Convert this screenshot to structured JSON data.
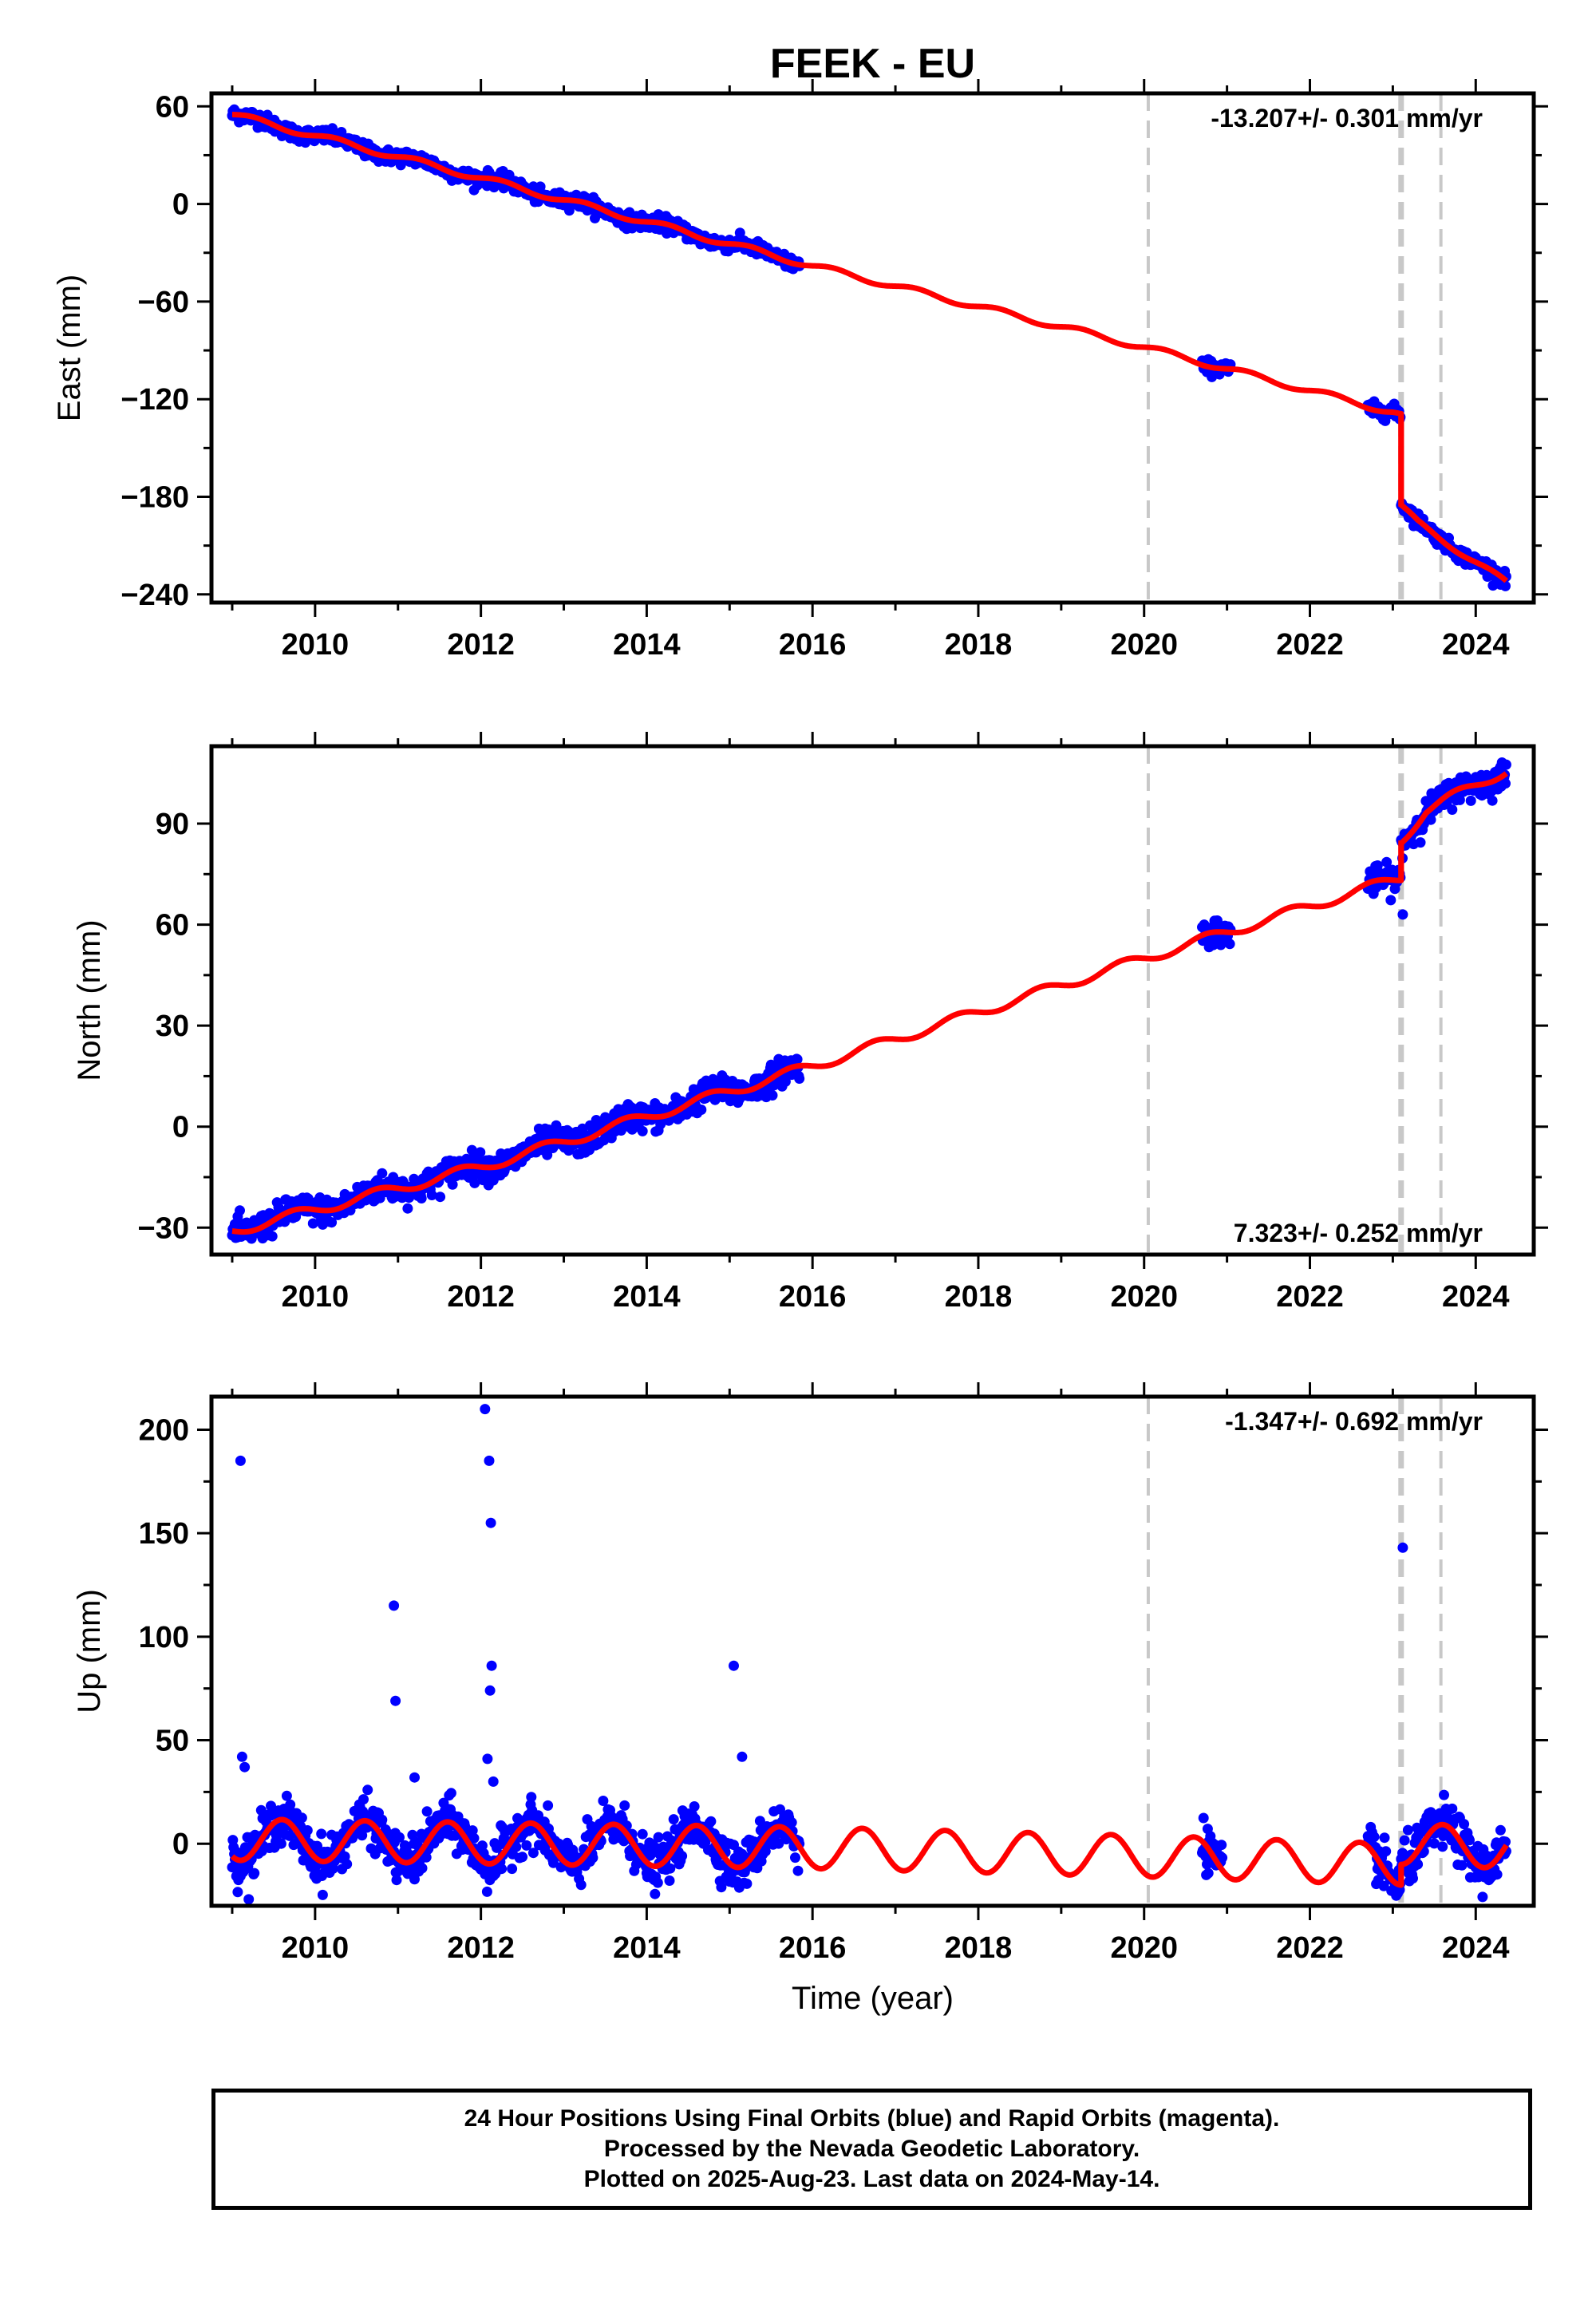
{
  "chart_data": {
    "title": "FEEK - EU",
    "type": "scatter",
    "x_range": [
      2008.75,
      2024.7
    ],
    "x_ticks": [
      2010,
      2012,
      2014,
      2016,
      2018,
      2020,
      2022,
      2024
    ],
    "xlabel": "Time (year)",
    "event_lines": [
      {
        "x": 2020.05,
        "style": "dashed-light"
      },
      {
        "x": 2023.1,
        "style": "dashed-thick"
      },
      {
        "x": 2023.58,
        "style": "dashed-light"
      }
    ],
    "data_segments": [
      [
        2009.0,
        2015.85
      ],
      [
        2020.7,
        2021.05
      ],
      [
        2022.7,
        2024.37
      ]
    ],
    "colors": {
      "observations": "#0000ff",
      "model": "#ff0000",
      "event_line": "#c8c8c8"
    },
    "panels": [
      {
        "id": "east",
        "ylabel": "East (mm)",
        "ylim": [
          -245,
          68
        ],
        "y_ticks": [
          60,
          0,
          -60,
          -120,
          -180,
          -240
        ],
        "rate_text": "-13.207+/- 0.301 mm/yr",
        "rate_position": "top-right",
        "model_points": [
          [
            2009.0,
            55
          ],
          [
            2012.0,
            16
          ],
          [
            2016.0,
            -38
          ],
          [
            2020.0,
            -88
          ],
          [
            2023.0,
            -128
          ],
          [
            2023.1,
            -130
          ],
          [
            2023.1,
            -186
          ],
          [
            2023.3,
            -196
          ],
          [
            2024.37,
            -233
          ]
        ],
        "scatter_outliers": []
      },
      {
        "id": "north",
        "ylabel": "North (mm)",
        "ylim": [
          -38,
          113
        ],
        "y_ticks": [
          90,
          60,
          30,
          0,
          -30
        ],
        "rate_text": "7.323+/- 0.252 mm/yr",
        "rate_position": "bottom-right",
        "model_points": [
          [
            2009.0,
            -31
          ],
          [
            2012.0,
            -12
          ],
          [
            2016.0,
            18
          ],
          [
            2020.0,
            50
          ],
          [
            2023.1,
            74
          ],
          [
            2023.1,
            85
          ],
          [
            2023.4,
            94
          ],
          [
            2024.37,
            106
          ]
        ],
        "scatter_outliers": [
          [
            2023.12,
            63
          ]
        ]
      },
      {
        "id": "up",
        "ylabel": "Up (mm)",
        "ylim": [
          -30,
          216
        ],
        "y_ticks": [
          200,
          150,
          100,
          50,
          0
        ],
        "rate_text": "-1.347+/- 0.692 mm/yr",
        "rate_position": "top-right",
        "seasonal": {
          "amplitude_mm": 10,
          "period_yr": 1,
          "peak_phase_yr": 0.6,
          "offset_mm": 2
        },
        "model_points": [
          [
            2009.0,
            0
          ],
          [
            2016.0,
            -4
          ],
          [
            2020.0,
            -8
          ],
          [
            2023.1,
            -12
          ],
          [
            2023.1,
            -2
          ],
          [
            2024.37,
            -4
          ]
        ],
        "scatter_outliers": [
          [
            2009.1,
            185
          ],
          [
            2009.12,
            42
          ],
          [
            2009.15,
            37
          ],
          [
            2010.95,
            115
          ],
          [
            2010.97,
            69
          ],
          [
            2011.2,
            32
          ],
          [
            2012.05,
            210
          ],
          [
            2012.1,
            185
          ],
          [
            2012.12,
            155
          ],
          [
            2012.13,
            86
          ],
          [
            2012.11,
            74
          ],
          [
            2012.08,
            41
          ],
          [
            2012.15,
            30
          ],
          [
            2015.05,
            86
          ],
          [
            2015.15,
            42
          ],
          [
            2023.12,
            143
          ]
        ]
      }
    ]
  },
  "footer": {
    "line1": "24 Hour Positions Using Final Orbits (blue) and Rapid Orbits (magenta).",
    "line2": "Processed by the Nevada Geodetic Laboratory.",
    "line3": "Plotted on 2025-Aug-23. Last data on 2024-May-14."
  }
}
